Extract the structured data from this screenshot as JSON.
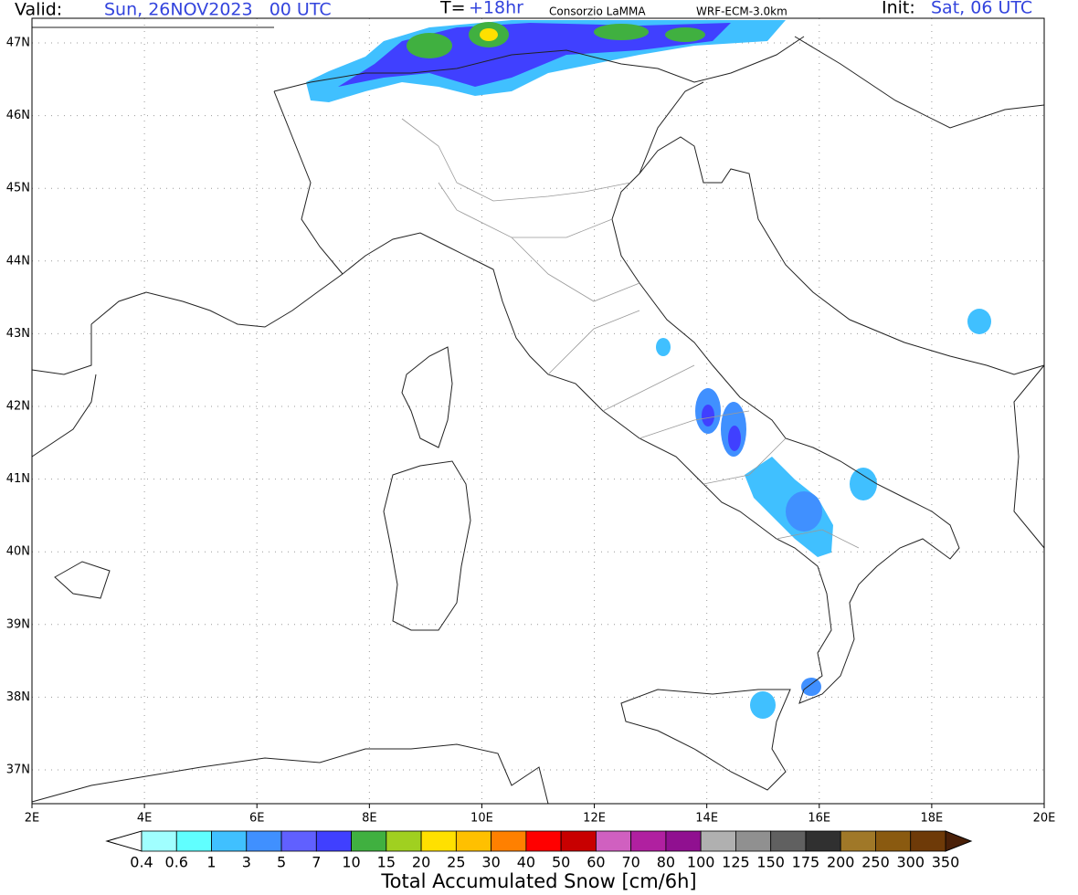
{
  "header": {
    "valid_label": "Valid:",
    "valid_time": "Sun, 26NOV2023   00 UTC",
    "lead_label": "T=",
    "lead_time": "+18hr",
    "source": "Consorzio LaMMA",
    "model": "WRF-ECM-3.0km",
    "init_label": "Init:",
    "init_time": "Sat, 06 UTC"
  },
  "map": {
    "lon_labels": [
      "2E",
      "4E",
      "6E",
      "8E",
      "10E",
      "12E",
      "14E",
      "16E",
      "18E",
      "20E"
    ],
    "lat_labels": [
      "47N",
      "46N",
      "45N",
      "44N",
      "43N",
      "42N",
      "41N",
      "40N",
      "39N",
      "38N",
      "37N"
    ]
  },
  "colorbar": {
    "title": "Total Accumulated Snow [cm/6h]",
    "bounds": [
      0.4,
      0.6,
      1,
      3,
      5,
      7,
      10,
      15,
      20,
      25,
      30,
      40,
      50,
      60,
      70,
      80,
      100,
      125,
      150,
      175,
      200,
      250,
      300,
      350
    ],
    "colors": [
      "#a0ffff",
      "#60ffff",
      "#40c0ff",
      "#4090ff",
      "#6060ff",
      "#4040ff",
      "#40b040",
      "#a0d020",
      "#ffe000",
      "#ffc000",
      "#ff8000",
      "#ff0000",
      "#c80000",
      "#d060c0",
      "#b020a0",
      "#901090",
      "#b0b0b0",
      "#909090",
      "#606060",
      "#303030",
      "#a07828",
      "#8a5a10",
      "#6e3a08"
    ],
    "under_color": "#ffffff",
    "over_color": "#4a2008"
  }
}
